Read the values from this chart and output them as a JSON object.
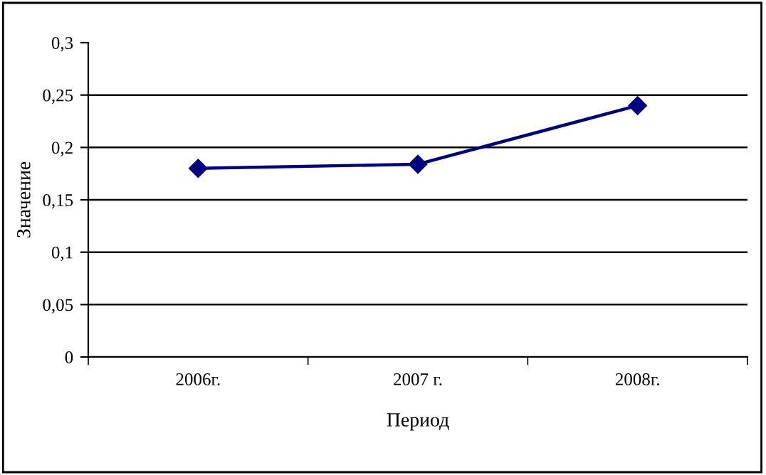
{
  "chart_data": {
    "type": "line",
    "xlabel": "Период",
    "ylabel": "Значение",
    "categories": [
      "2006г.",
      "2007 г.",
      "2008г."
    ],
    "series": [
      {
        "color": "#000080",
        "values": [
          0.18,
          0.184,
          0.24
        ]
      }
    ],
    "ylim": [
      0,
      0.3
    ],
    "yticks": [
      {
        "value": 0,
        "label": "0"
      },
      {
        "value": 0.05,
        "label": "0,05"
      },
      {
        "value": 0.1,
        "label": "0,1"
      },
      {
        "value": 0.15,
        "label": "0,15"
      },
      {
        "value": 0.2,
        "label": "0,2"
      },
      {
        "value": 0.25,
        "label": "0,25"
      },
      {
        "value": 0.3,
        "label": "0,3"
      }
    ],
    "grid": "y",
    "marker": "diamond",
    "line_style": "solid"
  }
}
